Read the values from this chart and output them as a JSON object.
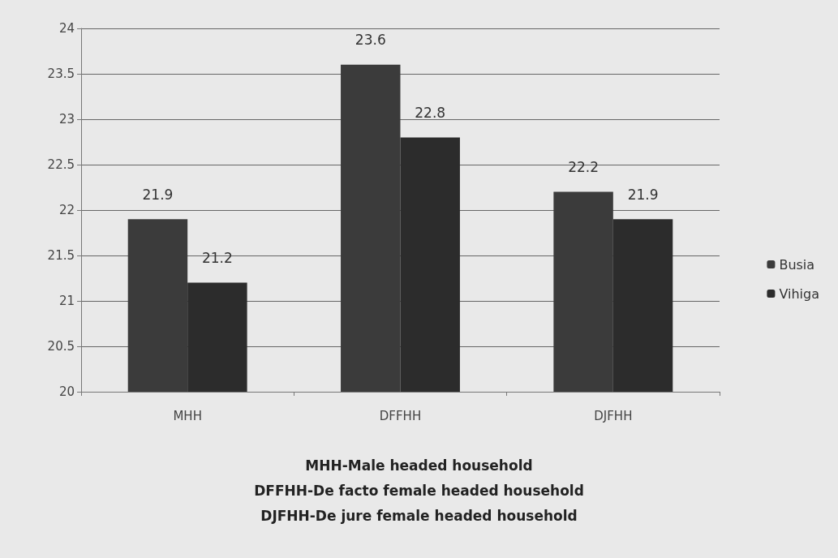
{
  "chart_data": {
    "type": "bar",
    "categories": [
      "MHH",
      "DFFHH",
      "DJFHH"
    ],
    "series": [
      {
        "name": "Busia",
        "color": "#3b3b3b",
        "values": [
          21.9,
          23.6,
          22.2
        ]
      },
      {
        "name": "Vihiga",
        "color": "#2c2c2c",
        "values": [
          21.2,
          22.8,
          21.9
        ]
      }
    ],
    "ylim": [
      20,
      24
    ],
    "yticks": [
      20,
      20.5,
      21,
      21.5,
      22,
      22.5,
      23,
      23.5,
      24
    ],
    "grid": "y",
    "legend": "right",
    "data_labels": true,
    "annotations": [
      "MHH-Male headed household",
      "DFFHH-De facto female headed household",
      "DJFHH-De jure female headed household"
    ]
  }
}
